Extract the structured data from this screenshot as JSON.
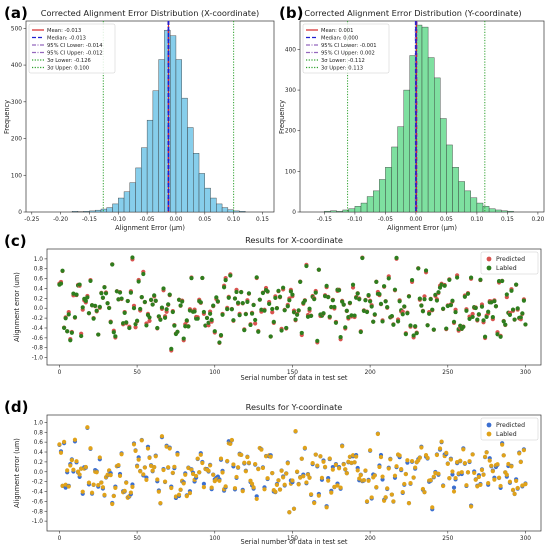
{
  "panels": [
    {
      "label": "(a)",
      "title": "Corrected Alignment Error Distribution (X-coordinate)",
      "xlabel": "Alignment Error (μm)",
      "ylabel": "Frequency",
      "xlim": [
        -0.26,
        0.17
      ],
      "ylim": [
        0,
        520
      ],
      "xticks": [
        "-0.25",
        "-0.20",
        "-0.15",
        "-0.10",
        "-0.05",
        "0.00",
        "0.05",
        "0.10",
        "0.15"
      ],
      "xtick_values": [
        -0.25,
        -0.2,
        -0.15,
        -0.1,
        -0.05,
        0.0,
        0.05,
        0.1,
        0.15
      ],
      "yticks": [
        0,
        100,
        200,
        300,
        400,
        500
      ],
      "bin_width": 0.01,
      "bins_start": [
        -0.18,
        -0.17,
        -0.16,
        -0.15,
        -0.14,
        -0.13,
        -0.12,
        -0.11,
        -0.1,
        -0.09,
        -0.08,
        -0.07,
        -0.06,
        -0.05,
        -0.04,
        -0.03,
        -0.02,
        -0.01,
        0.0,
        0.01,
        0.02,
        0.03,
        0.04,
        0.05,
        0.06,
        0.07,
        0.08,
        0.09,
        0.1,
        0.11
      ],
      "counts": [
        2,
        1,
        2,
        3,
        5,
        8,
        12,
        22,
        38,
        55,
        80,
        120,
        175,
        250,
        330,
        415,
        495,
        480,
        415,
        310,
        230,
        160,
        105,
        65,
        38,
        22,
        12,
        6,
        3,
        2
      ],
      "fill_color": "#87ceeb",
      "legend": [
        {
          "label": "Mean: -0.013",
          "color": "#d62728",
          "style": "solid"
        },
        {
          "label": "Median: -0.013",
          "color": "#1f1fd0",
          "style": "dashed"
        },
        {
          "label": "95% CI Lower: -0.014",
          "color": "#9467bd",
          "style": "dashdot"
        },
        {
          "label": "95% CI Upper: -0.012",
          "color": "#9467bd",
          "style": "dashdot"
        },
        {
          "label": "3σ Lower: -0.126",
          "color": "#2ca02c",
          "style": "dotted"
        },
        {
          "label": "3σ Upper: 0.100",
          "color": "#2ca02c",
          "style": "dotted"
        }
      ],
      "vlines": {
        "mean": -0.013,
        "median": -0.013,
        "ci_lower": -0.014,
        "ci_upper": -0.012,
        "s_lower": -0.126,
        "s_upper": 0.1
      }
    },
    {
      "label": "(b)",
      "title": "Corrected Alignment Error Distribution (Y-coordinate)",
      "xlabel": "Alignment Error (μm)",
      "ylabel": "Frequency",
      "xlim": [
        -0.19,
        0.21
      ],
      "ylim": [
        0,
        470
      ],
      "xticks": [
        "-0.15",
        "-0.10",
        "-0.05",
        "0.00",
        "0.05",
        "0.10",
        "0.15",
        "0.20"
      ],
      "xtick_values": [
        -0.15,
        -0.1,
        -0.05,
        0.0,
        0.05,
        0.1,
        0.15,
        0.2
      ],
      "yticks": [
        0,
        100,
        200,
        300,
        400
      ],
      "bin_width": 0.01,
      "bins_start": [
        -0.15,
        -0.14,
        -0.13,
        -0.12,
        -0.11,
        -0.1,
        -0.09,
        -0.08,
        -0.07,
        -0.06,
        -0.05,
        -0.04,
        -0.03,
        -0.02,
        -0.01,
        0.0,
        0.01,
        0.02,
        0.03,
        0.04,
        0.05,
        0.06,
        0.07,
        0.08,
        0.09,
        0.1,
        0.11,
        0.12,
        0.13,
        0.14,
        0.15
      ],
      "counts": [
        2,
        3,
        2,
        5,
        8,
        14,
        22,
        38,
        52,
        80,
        110,
        160,
        210,
        300,
        385,
        460,
        455,
        380,
        330,
        230,
        165,
        110,
        75,
        52,
        35,
        22,
        14,
        8,
        5,
        3,
        2
      ],
      "fill_color": "#7ee0a0",
      "legend": [
        {
          "label": "Mean: 0.001",
          "color": "#d62728",
          "style": "solid"
        },
        {
          "label": "Median: 0.000",
          "color": "#1f1fd0",
          "style": "dashed"
        },
        {
          "label": "95% CI Lower: -0.001",
          "color": "#9467bd",
          "style": "dashdot"
        },
        {
          "label": "95% CI Upper: 0.002",
          "color": "#9467bd",
          "style": "dashdot"
        },
        {
          "label": "3σ Lower: -0.112",
          "color": "#2ca02c",
          "style": "dotted"
        },
        {
          "label": "3σ Upper: 0.113",
          "color": "#2ca02c",
          "style": "dotted"
        }
      ],
      "vlines": {
        "mean": 0.001,
        "median": 0.0,
        "ci_lower": -0.001,
        "ci_upper": 0.002,
        "s_lower": -0.112,
        "s_upper": 0.113
      }
    },
    {
      "label": "(c)",
      "title": "Results for X-coordinate",
      "xlabel": "Serial number of data in test set",
      "ylabel": "Alignment error (um)",
      "xlim": [
        -8,
        310
      ],
      "ylim": [
        -1.15,
        1.2
      ],
      "xticks": [
        0,
        50,
        100,
        150,
        200,
        250,
        300
      ],
      "yticks": [
        "-1.0",
        "-0.8",
        "-0.6",
        "-0.4",
        "-0.2",
        "0.0",
        "0.2",
        "0.4",
        "0.6",
        "0.8",
        "1.0"
      ],
      "ytick_values": [
        -1.0,
        -0.8,
        -0.6,
        -0.4,
        -0.2,
        0.0,
        0.2,
        0.4,
        0.6,
        0.8,
        1.0
      ],
      "series": [
        {
          "name": "Predicted",
          "color": "#d9534f"
        },
        {
          "name": "Labled",
          "color": "#2e7d1e"
        }
      ],
      "seed": 7,
      "n_points": 301
    },
    {
      "label": "(d)",
      "title": "Results for Y-coordinate",
      "xlabel": "Serial number of data in test set",
      "ylabel": "Alignment error (um)",
      "xlim": [
        -8,
        310
      ],
      "ylim": [
        -1.2,
        1.15
      ],
      "xticks": [
        0,
        50,
        100,
        150,
        200,
        250,
        300
      ],
      "yticks": [
        "-1.0",
        "-0.8",
        "-0.6",
        "-0.4",
        "-0.2",
        "0.0",
        "0.2",
        "0.4",
        "0.6",
        "0.8",
        "1.0"
      ],
      "ytick_values": [
        -1.0,
        -0.8,
        -0.6,
        -0.4,
        -0.2,
        0.0,
        0.2,
        0.4,
        0.6,
        0.8,
        1.0
      ],
      "series": [
        {
          "name": "Predicted",
          "color": "#3b6fd1"
        },
        {
          "name": "Labled",
          "color": "#e0a21a"
        }
      ],
      "seed": 19,
      "n_points": 301
    }
  ]
}
